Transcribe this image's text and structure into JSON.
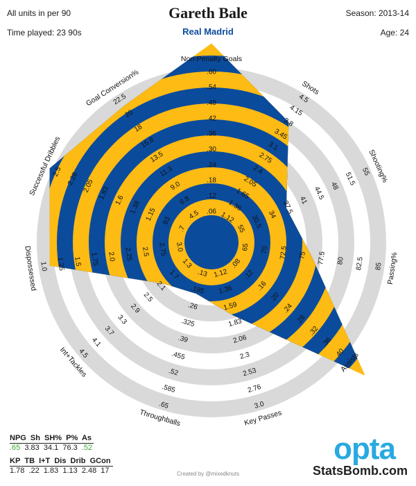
{
  "header": {
    "title": "Gareth Bale",
    "team": "Real Madrid",
    "units": "All units in per 90",
    "time_played": "Time played: 23 90s",
    "season": "Season: 2013-14",
    "age": "Age: 24"
  },
  "colors": {
    "ring_blue": "#0b4b9c",
    "ring_yellow": "#fdbb13",
    "ring_grey": "#d9d9d9",
    "team_blue": "#0b4b9c",
    "green": "#3fa535",
    "opta_blue": "#29a9e0"
  },
  "chart_data": {
    "type": "radar",
    "title": "Gareth Bale",
    "metrics": [
      {
        "name": "Non-Penalty Goals",
        "ticks": [
          ".06",
          ".12",
          ".18",
          ".24",
          ".30",
          ".36",
          ".42",
          ".48",
          ".54",
          ".60"
        ],
        "value": 0.65
      },
      {
        "name": "Shots",
        "ticks": [
          "1.12",
          "1.36",
          "1.65",
          "2.05",
          "2.4",
          "2.75",
          "3.1",
          "3.45",
          "3.8",
          "4.15",
          "4.5"
        ],
        "value": 3.83
      },
      {
        "name": "Shooting%",
        "ticks": [
          "55",
          "30.5",
          "34",
          "37.5",
          "41",
          "44.5",
          "48",
          "51.5",
          "55"
        ],
        "value": 34.1
      },
      {
        "name": "Passing%",
        "ticks": [
          "65",
          "70",
          "72.5",
          "75",
          "77.5",
          "80",
          "82.5",
          "85"
        ],
        "value": 76.3
      },
      {
        "name": "Assists",
        "ticks": [
          ".08",
          ".12",
          ".16",
          ".20",
          ".24",
          ".28",
          ".32",
          ".36",
          ".40"
        ],
        "value": 0.52
      },
      {
        "name": "Key Passes",
        "ticks": [
          "1.12",
          "1.36",
          "1.59",
          "1.83",
          "2.06",
          "2.3",
          "2.53",
          "2.76",
          "3.0"
        ],
        "value": 1.78
      },
      {
        "name": "Throughballs",
        "ticks": [
          ".13",
          ".195",
          ".26",
          ".325",
          ".39",
          ".455",
          ".52",
          ".585",
          ".65"
        ],
        "value": 0.22
      },
      {
        "name": "Int+Tackles",
        "ticks": [
          "1.3",
          "1.7",
          "2.1",
          "2.5",
          "2.9",
          "3.3",
          "3.7",
          "4.1",
          "4.5"
        ],
        "value": 1.83
      },
      {
        "name": "Dispossessed",
        "ticks": [
          "3.0",
          "2.75",
          "2.5",
          "2.25",
          "2.0",
          "1.75",
          "1.5",
          "1.25",
          "1.0"
        ],
        "value": 1.13
      },
      {
        "name": "Successful Dribbles",
        "ticks": [
          ".7",
          ".93",
          "1.15",
          "1.38",
          "1.6",
          "1.83",
          "2.05",
          "2.28",
          "2.5"
        ],
        "value": 2.48
      },
      {
        "name": "Goal Conversion%",
        "ticks": [
          "4.5",
          "6.8",
          "9.0",
          "11.3",
          "13.5",
          "15.8",
          "18",
          "20",
          "22.5"
        ],
        "value": 0.17
      }
    ],
    "polygon_levels": [
      1.15,
      0.8,
      0.42,
      0.54,
      1.18,
      0.38,
      0.24,
      0.3,
      0.93,
      1.02,
      0.92
    ]
  },
  "stats_table_1": {
    "headers": [
      "NPG",
      "Sh",
      "SH%",
      "P%",
      "As"
    ],
    "values": [
      ".65",
      "3.83",
      "34.1",
      "76.3",
      ".52"
    ]
  },
  "stats_table_2": {
    "headers": [
      "KP",
      "TB",
      "I+T",
      "Dis",
      "Drib",
      "GCon"
    ],
    "values": [
      "1.78",
      ".22",
      "1.83",
      "1.13",
      "2.48",
      "17"
    ]
  },
  "footer": {
    "credit": "Created by @mixedknuts",
    "opta": "opta",
    "statsbomb": "StatsBomb.com"
  }
}
